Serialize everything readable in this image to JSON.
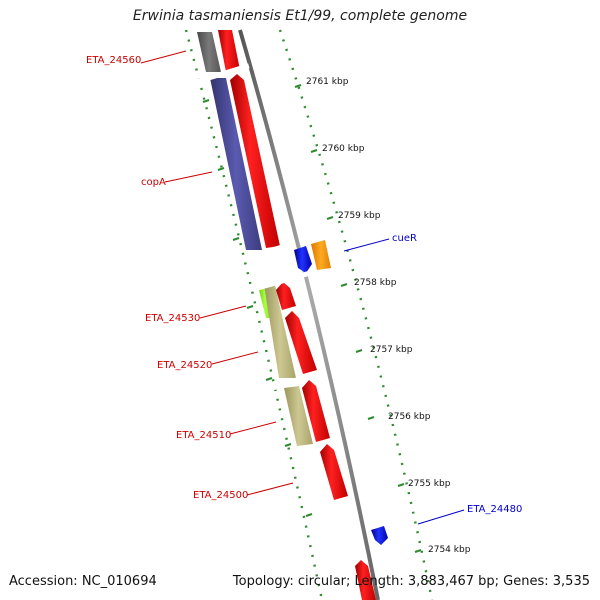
{
  "title": "Erwinia tasmaniensis Et1/99, complete genome",
  "footer": {
    "accession": "Accession: NC_010694",
    "summary": "Topology: circular; Length: 3,883,467 bp; Genes: 3,535"
  },
  "colors": {
    "backbone": "#888888",
    "tick": "#2e8b2e",
    "label_red": "#cc0000",
    "label_blue": "#0000cc",
    "forward_gene": "#ff0000",
    "reverse_gene": "#0000ee",
    "cds_grey": "#666666",
    "cds_purple": "#4b4b9b",
    "cds_tan": "#b8b37a",
    "cds_green": "#88ee22",
    "cds_orange": "#ff9900"
  },
  "ticks": [
    "2761 kbp",
    "2760 kbp",
    "2759 kbp",
    "2758 kbp",
    "2757 kbp",
    "2756 kbp",
    "2755 kbp",
    "2754 kbp"
  ],
  "gene_labels": [
    {
      "text": "ETA_24560",
      "color": "red"
    },
    {
      "text": "copA",
      "color": "red"
    },
    {
      "text": "cueR",
      "color": "blue"
    },
    {
      "text": "ETA_24530",
      "color": "red"
    },
    {
      "text": "ETA_24520",
      "color": "red"
    },
    {
      "text": "ETA_24510",
      "color": "red"
    },
    {
      "text": "ETA_24500",
      "color": "red"
    },
    {
      "text": "ETA_24480",
      "color": "blue"
    }
  ]
}
